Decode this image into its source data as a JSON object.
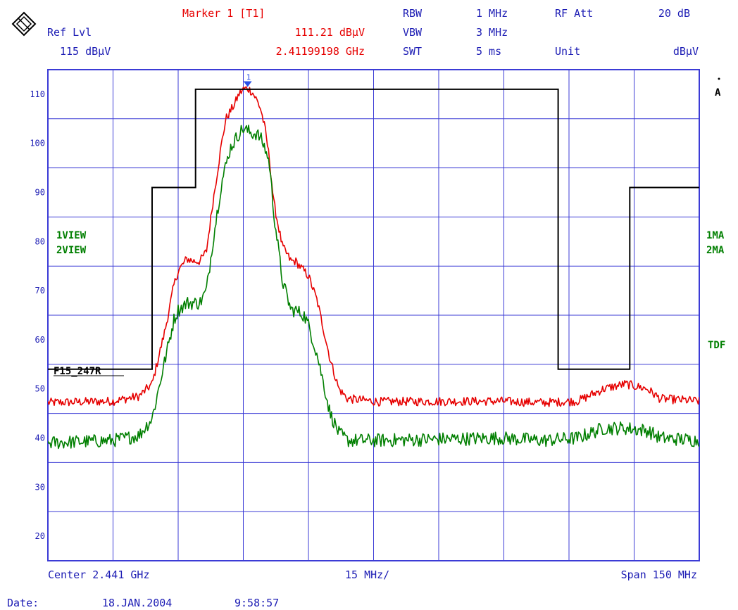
{
  "header": {
    "marker_title": "Marker 1 [T1]",
    "marker_level": "111.21 dBµV",
    "marker_freq": "2.41199198 GHz",
    "ref_label": "Ref Lvl",
    "ref_value": "115 dBµV",
    "rbw_label": "RBW",
    "rbw_value": "1 MHz",
    "vbw_label": "VBW",
    "vbw_value": "3 MHz",
    "swt_label": "SWT",
    "swt_value": "5 ms",
    "att_label": "RF Att",
    "att_value": "20 dB",
    "unit_label": "Unit",
    "unit_value": "dBµV"
  },
  "side_labels": {
    "left_1": "1VIEW",
    "left_2": "2VIEW",
    "right_1": "1MA",
    "right_2": "2MA",
    "right_tdf": "TDF",
    "right_a": "A",
    "limit_name": "F15_247R",
    "marker_num": "1"
  },
  "footer": {
    "center": "Center 2.441 GHz",
    "div": "15 MHz/",
    "span": "Span 150 MHz",
    "date_label": "Date:",
    "date_value": "18.JAN.2004",
    "time_value": "9:58:57"
  },
  "colors": {
    "grid": "#3b3bd6",
    "trace1": "#e60000",
    "trace2": "#007f00",
    "limit": "#000000",
    "marker": "#2a50e6",
    "header_red": "#e60000",
    "label_blue": "#1c1cb4",
    "label_green": "#007f00"
  },
  "chart_data": {
    "type": "line",
    "title": "",
    "xlabel": "",
    "ylabel": "",
    "x_unit": "MHz",
    "xlim": [
      2366,
      2516
    ],
    "ylim": [
      15,
      115
    ],
    "y_ticks": [
      "110",
      "100",
      "90",
      "80",
      "70",
      "60",
      "50",
      "40",
      "30",
      "20"
    ],
    "grid": true,
    "series": [
      {
        "name": "1VIEW",
        "x": [
          2366,
          2381,
          2387,
          2390,
          2393,
          2395,
          2396,
          2398,
          2399.5,
          2401,
          2402.5,
          2404,
          2406,
          2407,
          2409,
          2410,
          2411,
          2412,
          2413,
          2414,
          2415,
          2416,
          2417,
          2418,
          2420,
          2422,
          2423,
          2425,
          2426,
          2428,
          2430,
          2431,
          2433,
          2435,
          2442,
          2470,
          2480,
          2488,
          2494,
          2499,
          2504,
          2507,
          2516
        ],
        "y": [
          47.2,
          47.5,
          48.5,
          51,
          62,
          71,
          74,
          76.5,
          76,
          76,
          78,
          88,
          100,
          105,
          108,
          110,
          111,
          111.2,
          110.5,
          109,
          107,
          103,
          97,
          88,
          79,
          76,
          76,
          74,
          73,
          68,
          60,
          56,
          50,
          48,
          47.4,
          47.5,
          47.2,
          47.5,
          50,
          51,
          50,
          48,
          47.5
        ]
      },
      {
        "name": "2VIEW",
        "x": [
          2366,
          2381,
          2387,
          2390,
          2393,
          2395,
          2396,
          2398,
          2399.5,
          2401,
          2402.5,
          2404,
          2406,
          2408,
          2410,
          2411,
          2412,
          2413,
          2414,
          2415,
          2416,
          2417,
          2418,
          2420,
          2422,
          2423,
          2425,
          2426,
          2428,
          2430,
          2431,
          2433,
          2435,
          2442,
          2470,
          2480,
          2488,
          2494,
          2499,
          2504,
          2507,
          2516
        ],
        "y": [
          39,
          39.5,
          40.5,
          44,
          56,
          64,
          66,
          67.5,
          67.5,
          67.5,
          70,
          80,
          92,
          99,
          102,
          103,
          102.5,
          102,
          102,
          101,
          99,
          96,
          86,
          72,
          66,
          66,
          65,
          63,
          57,
          49,
          45,
          41,
          39.5,
          39.5,
          40,
          39.5,
          40,
          42,
          42,
          41.5,
          40,
          39.5
        ]
      },
      {
        "name": "F15_247R",
        "x": [
          2366,
          2390,
          2390,
          2400,
          2400,
          2483.5,
          2483.5,
          2500,
          2500,
          2516
        ],
        "y": [
          54,
          54,
          91,
          91,
          111,
          111,
          54,
          54,
          91,
          91
        ]
      }
    ],
    "marker": {
      "label": "1",
      "x": 2412,
      "y": 111.21
    }
  }
}
